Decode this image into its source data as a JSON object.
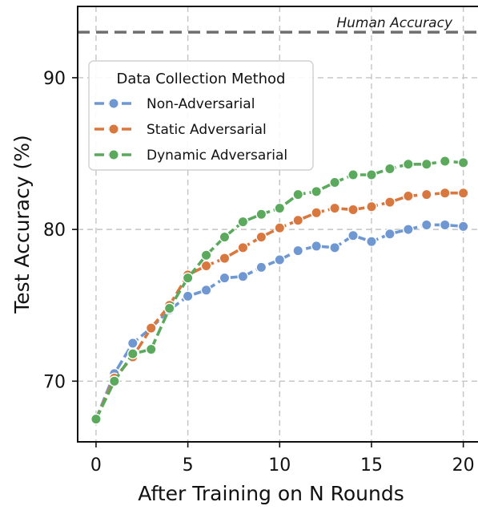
{
  "chart_data": {
    "type": "line",
    "xlabel": "After Training on N Rounds",
    "ylabel": "Test Accuracy (%)",
    "xlim": [
      -1,
      20.8
    ],
    "ylim": [
      66,
      94.7
    ],
    "xticks": [
      0,
      5,
      10,
      15,
      20
    ],
    "yticks": [
      70,
      80,
      90
    ],
    "grid": true,
    "legend": {
      "title": "Data Collection Method",
      "placement": "upper-left"
    },
    "x": [
      0,
      1,
      2,
      3,
      4,
      5,
      6,
      7,
      8,
      9,
      10,
      11,
      12,
      13,
      14,
      15,
      16,
      17,
      18,
      19,
      20
    ],
    "series": [
      {
        "name": "Non-Adversarial",
        "color": "#6f98d3",
        "values": [
          67.5,
          70.5,
          72.5,
          73.5,
          74.7,
          75.6,
          76.0,
          76.8,
          76.9,
          77.5,
          78.0,
          78.6,
          78.9,
          78.8,
          79.6,
          79.2,
          79.7,
          80.0,
          80.3,
          80.3,
          80.2
        ]
      },
      {
        "name": "Static Adversarial",
        "color": "#d9783e",
        "values": [
          67.5,
          70.2,
          71.6,
          73.5,
          75.0,
          77.0,
          77.6,
          78.1,
          78.8,
          79.5,
          80.1,
          80.6,
          81.1,
          81.4,
          81.3,
          81.5,
          81.8,
          82.2,
          82.3,
          82.4,
          82.4
        ]
      },
      {
        "name": "Dynamic Adversarial",
        "color": "#5aa95c",
        "values": [
          67.5,
          70.0,
          71.8,
          72.1,
          74.8,
          76.8,
          78.3,
          79.5,
          80.5,
          81.0,
          81.4,
          82.3,
          82.5,
          83.1,
          83.6,
          83.6,
          84.0,
          84.3,
          84.3,
          84.5,
          84.4
        ]
      }
    ],
    "reference_line": {
      "label": "Human Accuracy",
      "y": 93.0,
      "color": "#6e6e6e"
    }
  }
}
